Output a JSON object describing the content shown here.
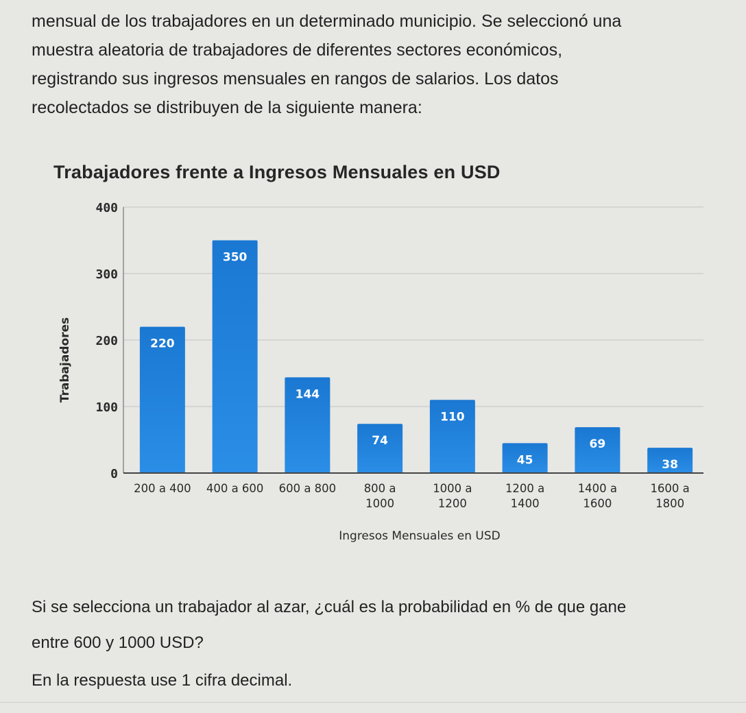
{
  "intro": {
    "lines": [
      "mensual de los trabajadores en un determinado municipio. Se seleccionó una",
      "muestra aleatoria de trabajadores de diferentes sectores económicos,",
      "registrando sus ingresos mensuales en rangos de salarios. Los datos",
      "recolectados se distribuyen de la siguiente manera:"
    ]
  },
  "question": {
    "lines": [
      "Si se selecciona un trabajador al azar, ¿cuál es la probabilidad en % de que gane",
      "entre 600 y 1000 USD?"
    ],
    "instruction": "En la respuesta use 1 cifra decimal."
  },
  "colors": {
    "bar_top": "#1a78d2",
    "bar_bottom": "#2b8ee6",
    "gridline": "#cfcfcf",
    "axis": "#444444",
    "label_text": "#ffffff"
  },
  "chart_data": {
    "type": "bar",
    "title": "Trabajadores frente a Ingresos Mensuales en USD",
    "xlabel": "Ingresos Mensuales en USD",
    "ylabel": "Trabajadores",
    "categories": [
      [
        "200 a 400"
      ],
      [
        "400 a 600"
      ],
      [
        "600 a 800"
      ],
      [
        "800 a",
        "1000"
      ],
      [
        "1000 a",
        "1200"
      ],
      [
        "1200 a",
        "1400"
      ],
      [
        "1400 a",
        "1600"
      ],
      [
        "1600 a",
        "1800"
      ]
    ],
    "values": [
      220,
      350,
      144,
      74,
      110,
      45,
      69,
      38
    ],
    "data_labels": [
      "220",
      "350",
      "144",
      "74",
      "110",
      "45",
      "69",
      "38"
    ],
    "ylim": [
      0,
      400
    ],
    "yticks": [
      0,
      100,
      200,
      300,
      400
    ],
    "grid": true,
    "legend": "none"
  }
}
